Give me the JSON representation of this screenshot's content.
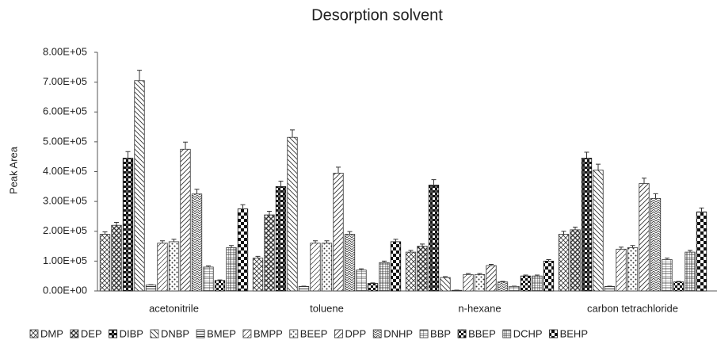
{
  "chart_data": {
    "type": "bar",
    "title": "Desorption solvent",
    "y_label": "Peak Area",
    "categories": [
      "acetonitrile",
      "toluene",
      "n-hexane",
      "carbon tetrachloride"
    ],
    "ylim": [
      0,
      800000
    ],
    "yticks": [
      {
        "value": 0,
        "label": "0.00E+00"
      },
      {
        "value": 100000,
        "label": "1.00E+05"
      },
      {
        "value": 200000,
        "label": "2.00E+05"
      },
      {
        "value": 300000,
        "label": "3.00E+05"
      },
      {
        "value": 400000,
        "label": "4.00E+05"
      },
      {
        "value": 500000,
        "label": "5.00E+05"
      },
      {
        "value": 600000,
        "label": "6.00E+05"
      },
      {
        "value": 700000,
        "label": "7.00E+05"
      },
      {
        "value": 800000,
        "label": "8.00E+05"
      }
    ],
    "legend": "bottom",
    "series": [
      {
        "name": "DMP",
        "color": "#333333",
        "pattern": "crosshatch",
        "values": [
          190000,
          110000,
          130000,
          190000
        ],
        "errors": [
          8000,
          6000,
          6000,
          10000
        ]
      },
      {
        "name": "DEP",
        "color": "#333333",
        "pattern": "diag-cross",
        "values": [
          220000,
          255000,
          150000,
          205000
        ],
        "errors": [
          10000,
          12000,
          7000,
          9000
        ]
      },
      {
        "name": "DIBP",
        "color": "#111111",
        "pattern": "checker",
        "values": [
          445000,
          350000,
          355000,
          445000
        ],
        "errors": [
          22000,
          18000,
          18000,
          20000
        ]
      },
      {
        "name": "DNBP",
        "color": "#333333",
        "pattern": "diag-down",
        "values": [
          705000,
          515000,
          45000,
          405000
        ],
        "errors": [
          35000,
          25000,
          3000,
          20000
        ]
      },
      {
        "name": "BMEP",
        "color": "#333333",
        "pattern": "hlines",
        "values": [
          20000,
          15000,
          2000,
          15000
        ],
        "errors": [
          1000,
          1000,
          500,
          1000
        ]
      },
      {
        "name": "BMPP",
        "color": "#333333",
        "pattern": "diag-up-sparse",
        "values": [
          160000,
          160000,
          55000,
          140000
        ],
        "errors": [
          8000,
          8000,
          3000,
          7000
        ]
      },
      {
        "name": "BEEP",
        "color": "#333333",
        "pattern": "dots",
        "values": [
          165000,
          160000,
          55000,
          145000
        ],
        "errors": [
          8000,
          8000,
          3000,
          7000
        ]
      },
      {
        "name": "DPP",
        "color": "#333333",
        "pattern": "diag-up",
        "values": [
          475000,
          395000,
          85000,
          360000
        ],
        "errors": [
          24000,
          20000,
          4000,
          18000
        ]
      },
      {
        "name": "DNHP",
        "color": "#333333",
        "pattern": "zigzag",
        "values": [
          325000,
          190000,
          30000,
          310000
        ],
        "errors": [
          16000,
          9000,
          2000,
          16000
        ]
      },
      {
        "name": "BBP",
        "color": "#333333",
        "pattern": "hlines-box",
        "values": [
          80000,
          70000,
          15000,
          105000
        ],
        "errors": [
          4000,
          4000,
          1000,
          5000
        ]
      },
      {
        "name": "BBEP",
        "color": "#111111",
        "pattern": "checker-dense",
        "values": [
          35000,
          25000,
          50000,
          30000
        ],
        "errors": [
          2000,
          2000,
          3000,
          2000
        ]
      },
      {
        "name": "DCHP",
        "color": "#333333",
        "pattern": "grid",
        "values": [
          145000,
          95000,
          50000,
          130000
        ],
        "errors": [
          7000,
          5000,
          3000,
          6000
        ]
      },
      {
        "name": "BEHP",
        "color": "#111111",
        "pattern": "checker-large",
        "values": [
          275000,
          165000,
          100000,
          265000
        ],
        "errors": [
          14000,
          8000,
          5000,
          13000
        ]
      }
    ]
  }
}
